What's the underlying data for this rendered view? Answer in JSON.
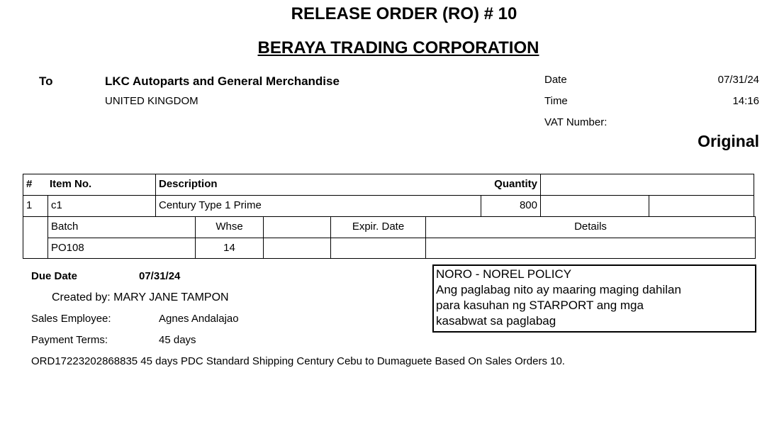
{
  "title": "RELEASE ORDER (RO) # 10",
  "company": "BERAYA TRADING CORPORATION",
  "to_label": "To",
  "customer_name": "LKC Autoparts and General Merchandise",
  "customer_country": "UNITED KINGDOM",
  "date_label": "Date",
  "date_value": "07/31/24",
  "time_label": "Time",
  "time_value": "14:16",
  "vat_label": "VAT Number:",
  "vat_value": "",
  "copy_type": "Original",
  "table": {
    "headers": [
      "#",
      "Item No.",
      "Description",
      "Quantity"
    ],
    "row": {
      "num": "1",
      "item_no": "c1",
      "description": "Century Type 1 Prime",
      "quantity": "800"
    },
    "batch_headers": [
      "Batch",
      "Whse",
      "Expir. Date",
      "Details"
    ],
    "batch_row": {
      "batch": "PO108",
      "whse": "14",
      "expir_date": "",
      "details": ""
    }
  },
  "due_date_label": "Due Date",
  "due_date_value": "07/31/24",
  "created_by": "Created by:  MARY JANE TAMPON",
  "sales_employee_label": "Sales Employee:",
  "sales_employee_value": "Agnes Andalajao",
  "payment_terms_label": "Payment Terms:",
  "payment_terms_value": "45 days",
  "remarks": "ORD17223202868835 45 days PDC Standard Shipping Century Cebu to Dumaguete Based On Sales Orders 10.",
  "policy": {
    "title": "NORO - NOREL POLICY",
    "lines": [
      "Ang paglabag nito ay maaring maging dahilan",
      "para kasuhan ng STARPORT ang mga",
      "kasabwat sa paglabag"
    ]
  }
}
